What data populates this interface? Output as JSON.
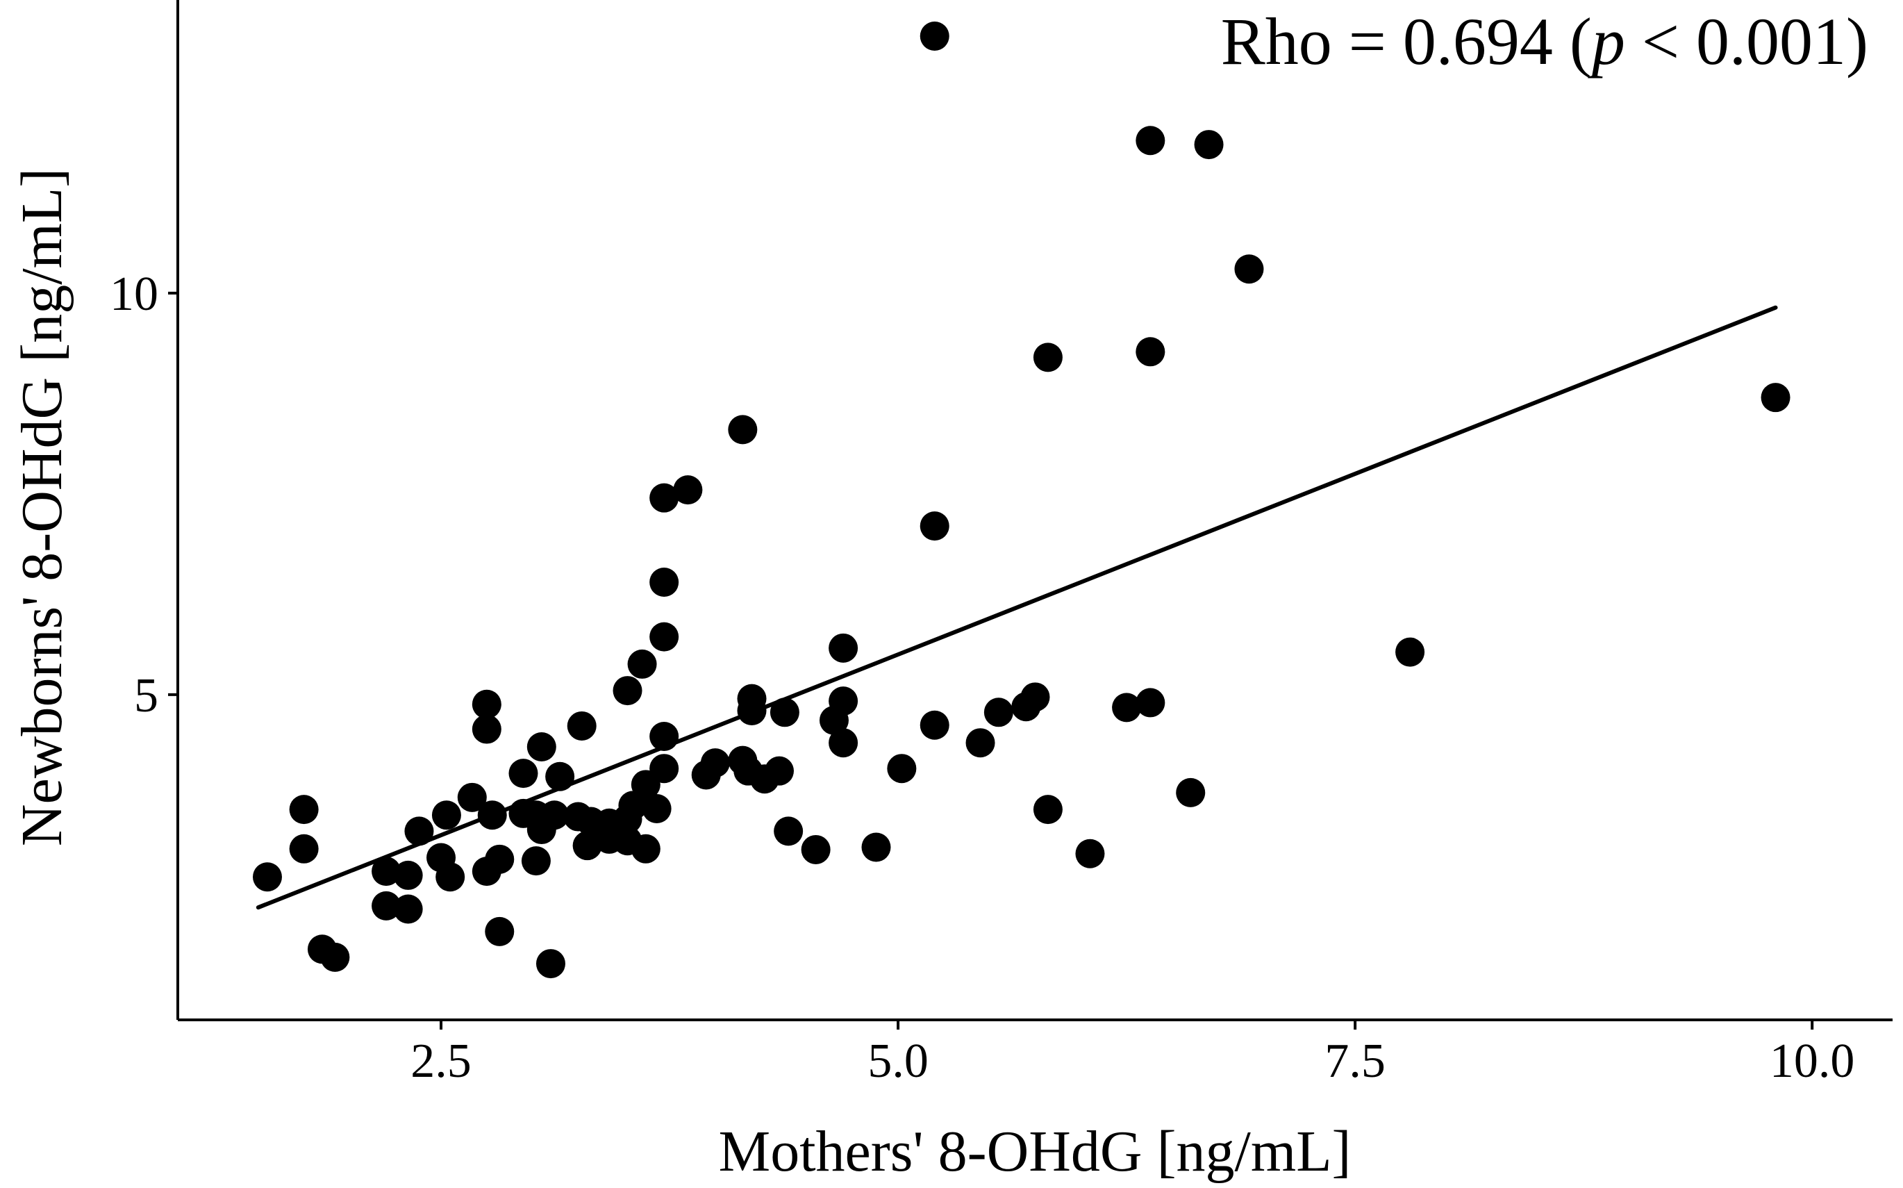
{
  "chart_data": {
    "type": "scatter",
    "title": "",
    "xlabel": "Mothers' 8-OHdG [ng/mL]",
    "ylabel": "Newborns' 8-OHdG [ng/mL]",
    "xlim": [
      1.06,
      10.44
    ],
    "ylim": [
      0.95,
      13.65
    ],
    "x_ticks": [
      2.5,
      5.0,
      7.5,
      10.0
    ],
    "x_tick_labels": [
      "2.5",
      "5.0",
      "7.5",
      "10.0"
    ],
    "y_ticks": [
      5,
      10
    ],
    "y_tick_labels": [
      "5",
      "10"
    ],
    "grid": false,
    "annotation": {
      "prefix": "Rho = 0.694 (",
      "italic": "p",
      "suffix": " < 0.001)"
    },
    "trend_line": {
      "x": [
        1.5,
        9.8
      ],
      "y": [
        2.35,
        9.82
      ]
    },
    "points": [
      [
        5.2,
        13.2
      ],
      [
        6.38,
        11.9
      ],
      [
        6.7,
        11.85
      ],
      [
        6.92,
        10.3
      ],
      [
        5.82,
        9.2
      ],
      [
        6.38,
        9.27
      ],
      [
        9.8,
        8.7
      ],
      [
        4.15,
        8.3
      ],
      [
        3.85,
        7.55
      ],
      [
        3.72,
        7.45
      ],
      [
        5.2,
        7.1
      ],
      [
        3.72,
        6.4
      ],
      [
        3.72,
        5.72
      ],
      [
        4.7,
        5.58
      ],
      [
        7.8,
        5.53
      ],
      [
        3.6,
        5.38
      ],
      [
        3.52,
        5.05
      ],
      [
        2.75,
        4.88
      ],
      [
        4.2,
        4.95
      ],
      [
        4.2,
        4.8
      ],
      [
        4.38,
        4.78
      ],
      [
        4.7,
        4.92
      ],
      [
        5.55,
        4.78
      ],
      [
        5.7,
        4.85
      ],
      [
        5.75,
        4.97
      ],
      [
        6.25,
        4.84
      ],
      [
        6.38,
        4.9
      ],
      [
        4.65,
        4.68
      ],
      [
        5.2,
        4.62
      ],
      [
        3.27,
        4.61
      ],
      [
        2.75,
        4.57
      ],
      [
        3.72,
        4.48
      ],
      [
        5.45,
        4.4
      ],
      [
        4.7,
        4.4
      ],
      [
        3.05,
        4.35
      ],
      [
        4.0,
        4.15
      ],
      [
        4.15,
        4.18
      ],
      [
        3.72,
        4.08
      ],
      [
        3.95,
        4.0
      ],
      [
        4.18,
        4.05
      ],
      [
        4.35,
        4.05
      ],
      [
        4.27,
        3.95
      ],
      [
        5.02,
        4.08
      ],
      [
        2.95,
        4.02
      ],
      [
        3.15,
        3.98
      ],
      [
        3.62,
        3.88
      ],
      [
        6.6,
        3.78
      ],
      [
        2.67,
        3.72
      ],
      [
        3.68,
        3.58
      ],
      [
        3.55,
        3.62
      ],
      [
        1.75,
        3.57
      ],
      [
        5.82,
        3.57
      ],
      [
        2.53,
        3.5
      ],
      [
        2.78,
        3.5
      ],
      [
        2.95,
        3.52
      ],
      [
        3.02,
        3.5
      ],
      [
        3.12,
        3.5
      ],
      [
        3.25,
        3.48
      ],
      [
        3.32,
        3.42
      ],
      [
        3.42,
        3.4
      ],
      [
        3.52,
        3.45
      ],
      [
        3.05,
        3.32
      ],
      [
        2.38,
        3.3
      ],
      [
        3.35,
        3.28
      ],
      [
        3.42,
        3.2
      ],
      [
        3.52,
        3.18
      ],
      [
        3.3,
        3.12
      ],
      [
        3.62,
        3.08
      ],
      [
        4.4,
        3.3
      ],
      [
        1.75,
        3.08
      ],
      [
        4.55,
        3.07
      ],
      [
        4.88,
        3.1
      ],
      [
        6.05,
        3.02
      ],
      [
        2.5,
        2.97
      ],
      [
        2.82,
        2.95
      ],
      [
        3.02,
        2.93
      ],
      [
        2.2,
        2.8
      ],
      [
        2.75,
        2.8
      ],
      [
        2.32,
        2.75
      ],
      [
        2.55,
        2.73
      ],
      [
        1.55,
        2.73
      ],
      [
        2.2,
        2.37
      ],
      [
        2.32,
        2.33
      ],
      [
        2.82,
        2.05
      ],
      [
        1.85,
        1.83
      ],
      [
        1.92,
        1.73
      ],
      [
        3.1,
        1.65
      ]
    ]
  }
}
